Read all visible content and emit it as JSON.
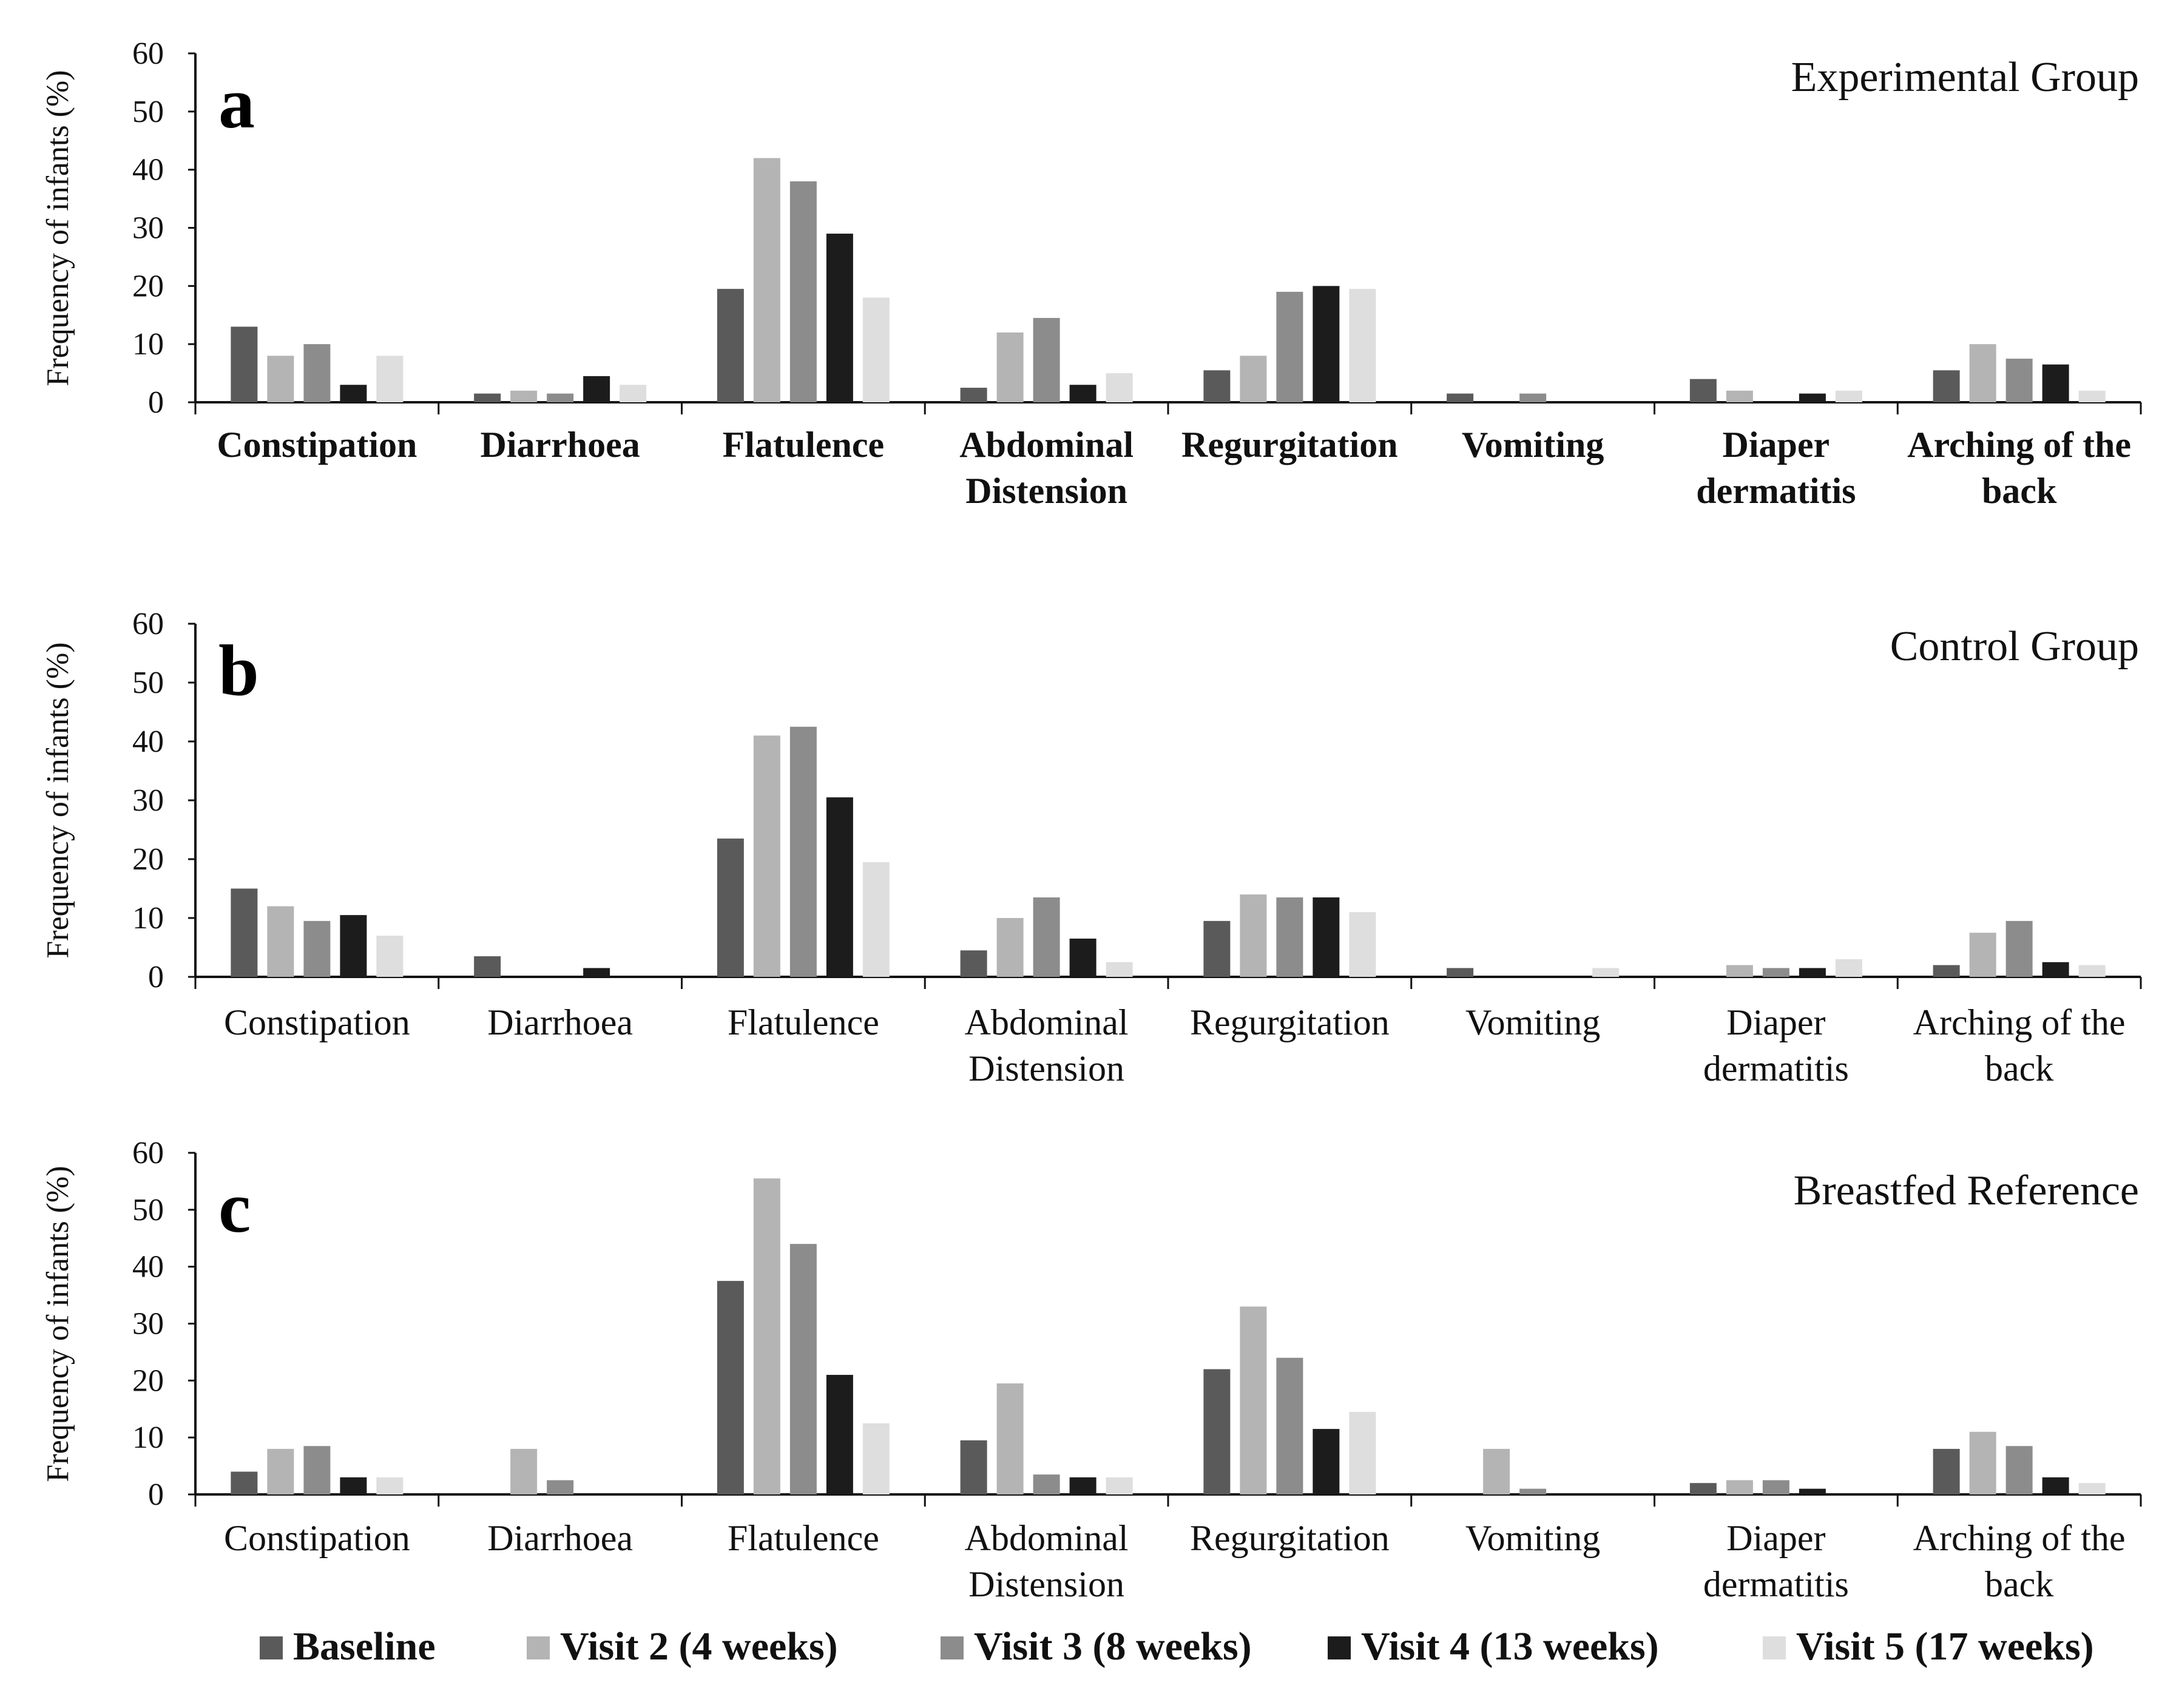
{
  "colors": {
    "Baseline": "#5a5a5a",
    "Visit 2 (4 weeks)": "#b4b4b4",
    "Visit 3 (8 weeks)": "#8c8c8c",
    "Visit 4 (13 weeks)": "#1c1c1c",
    "Visit 5 (17 weeks)": "#dedede"
  },
  "legend": [
    "Baseline",
    "Visit 2 (4 weeks)",
    "Visit 3 (8 weeks)",
    "Visit 4 (13 weeks)",
    "Visit 5 (17 weeks)"
  ],
  "chart_data": [
    {
      "type": "bar",
      "panel": "a",
      "title": "Experimental Group",
      "ylabel": "Frequency of infants (%)",
      "xlabel": "",
      "ylim": [
        0,
        60
      ],
      "yticks": [
        0,
        10,
        20,
        30,
        40,
        50,
        60
      ],
      "categories": [
        "Constipation",
        "Diarrhoea",
        "Flatulence",
        "Abdominal\nDistension",
        "Regurgitation",
        "Vomiting",
        "Diaper\ndermatitis",
        "Arching of the\nback"
      ],
      "series": [
        {
          "name": "Baseline",
          "values": [
            13,
            1.5,
            19.5,
            2.5,
            5.5,
            1.5,
            4,
            5.5
          ]
        },
        {
          "name": "Visit 2 (4 weeks)",
          "values": [
            8,
            2,
            42,
            12,
            8,
            0,
            2,
            10
          ]
        },
        {
          "name": "Visit 3 (8 weeks)",
          "values": [
            10,
            1.5,
            38,
            14.5,
            19,
            1.5,
            0,
            7.5
          ]
        },
        {
          "name": "Visit 4 (13 weeks)",
          "values": [
            3,
            4.5,
            29,
            3,
            20,
            0,
            1.5,
            6.5
          ]
        },
        {
          "name": "Visit 5 (17 weeks)",
          "values": [
            8,
            3,
            18,
            5,
            19.5,
            0,
            2,
            2
          ]
        }
      ]
    },
    {
      "type": "bar",
      "panel": "b",
      "title": "Control Group",
      "ylabel": "Frequency of infants (%)",
      "xlabel": "",
      "ylim": [
        0,
        60
      ],
      "yticks": [
        0,
        10,
        20,
        30,
        40,
        50,
        60
      ],
      "categories": [
        "Constipation",
        "Diarrhoea",
        "Flatulence",
        "Abdominal\nDistension",
        "Regurgitation",
        "Vomiting",
        "Diaper\ndermatitis",
        "Arching of the\nback"
      ],
      "series": [
        {
          "name": "Baseline",
          "values": [
            15,
            3.5,
            23.5,
            4.5,
            9.5,
            1.5,
            0,
            2
          ]
        },
        {
          "name": "Visit 2 (4 weeks)",
          "values": [
            12,
            0,
            41,
            10,
            14,
            0,
            2,
            7.5
          ]
        },
        {
          "name": "Visit 3 (8 weeks)",
          "values": [
            9.5,
            0,
            42.5,
            13.5,
            13.5,
            0,
            1.5,
            9.5
          ]
        },
        {
          "name": "Visit 4 (13 weeks)",
          "values": [
            10.5,
            1.5,
            30.5,
            6.5,
            13.5,
            0,
            1.5,
            2.5
          ]
        },
        {
          "name": "Visit 5 (17 weeks)",
          "values": [
            7,
            0,
            19.5,
            2.5,
            11,
            1.5,
            3,
            2
          ]
        }
      ]
    },
    {
      "type": "bar",
      "panel": "c",
      "title": "Breastfed Reference",
      "ylabel": "Frequency of infants (%)",
      "xlabel": "",
      "ylim": [
        0,
        60
      ],
      "yticks": [
        0,
        10,
        20,
        30,
        40,
        50,
        60
      ],
      "categories": [
        "Constipation",
        "Diarrhoea",
        "Flatulence",
        "Abdominal\nDistension",
        "Regurgitation",
        "Vomiting",
        "Diaper\ndermatitis",
        "Arching of the\nback"
      ],
      "series": [
        {
          "name": "Baseline",
          "values": [
            4,
            0,
            37.5,
            9.5,
            22,
            0,
            2,
            8
          ]
        },
        {
          "name": "Visit 2 (4 weeks)",
          "values": [
            8,
            8,
            55.5,
            19.5,
            33,
            8,
            2.5,
            11
          ]
        },
        {
          "name": "Visit 3 (8 weeks)",
          "values": [
            8.5,
            2.5,
            44,
            3.5,
            24,
            1,
            2.5,
            8.5
          ]
        },
        {
          "name": "Visit 4 (13 weeks)",
          "values": [
            3,
            0,
            21,
            3,
            11.5,
            0,
            1,
            3
          ]
        },
        {
          "name": "Visit 5 (17 weeks)",
          "values": [
            3,
            0,
            12.5,
            3,
            14.5,
            0,
            0,
            2
          ]
        }
      ]
    }
  ]
}
